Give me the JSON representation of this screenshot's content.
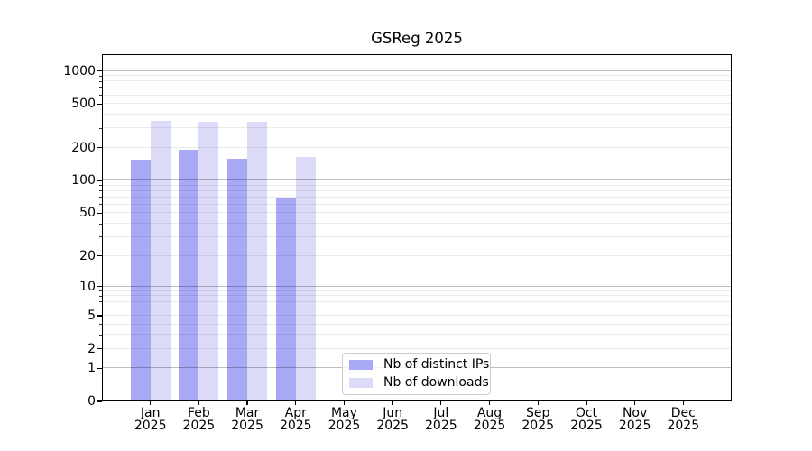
{
  "chart_data": {
    "type": "bar",
    "title": "GSReg 2025",
    "categories": [
      "Jan",
      "Feb",
      "Mar",
      "Apr",
      "May",
      "Jun",
      "Jul",
      "Aug",
      "Sep",
      "Oct",
      "Nov",
      "Dec"
    ],
    "x_year_label": "2025",
    "series": [
      {
        "name": "Nb of distinct IPs",
        "color": "#a8a8f5",
        "values": [
          155,
          190,
          160,
          70,
          0,
          0,
          0,
          0,
          0,
          0,
          0,
          0
        ]
      },
      {
        "name": "Nb of downloads",
        "color": "#dcdcf9",
        "values": [
          350,
          345,
          345,
          165,
          0,
          0,
          0,
          0,
          0,
          0,
          0,
          0
        ]
      }
    ],
    "yscale": "log1p",
    "yticks": [
      0,
      1,
      2,
      5,
      10,
      20,
      50,
      100,
      200,
      500,
      1000
    ],
    "ylim": [
      0,
      1420
    ],
    "grid": "horizontal, log major and minor lines",
    "legend_position": "lower center"
  }
}
